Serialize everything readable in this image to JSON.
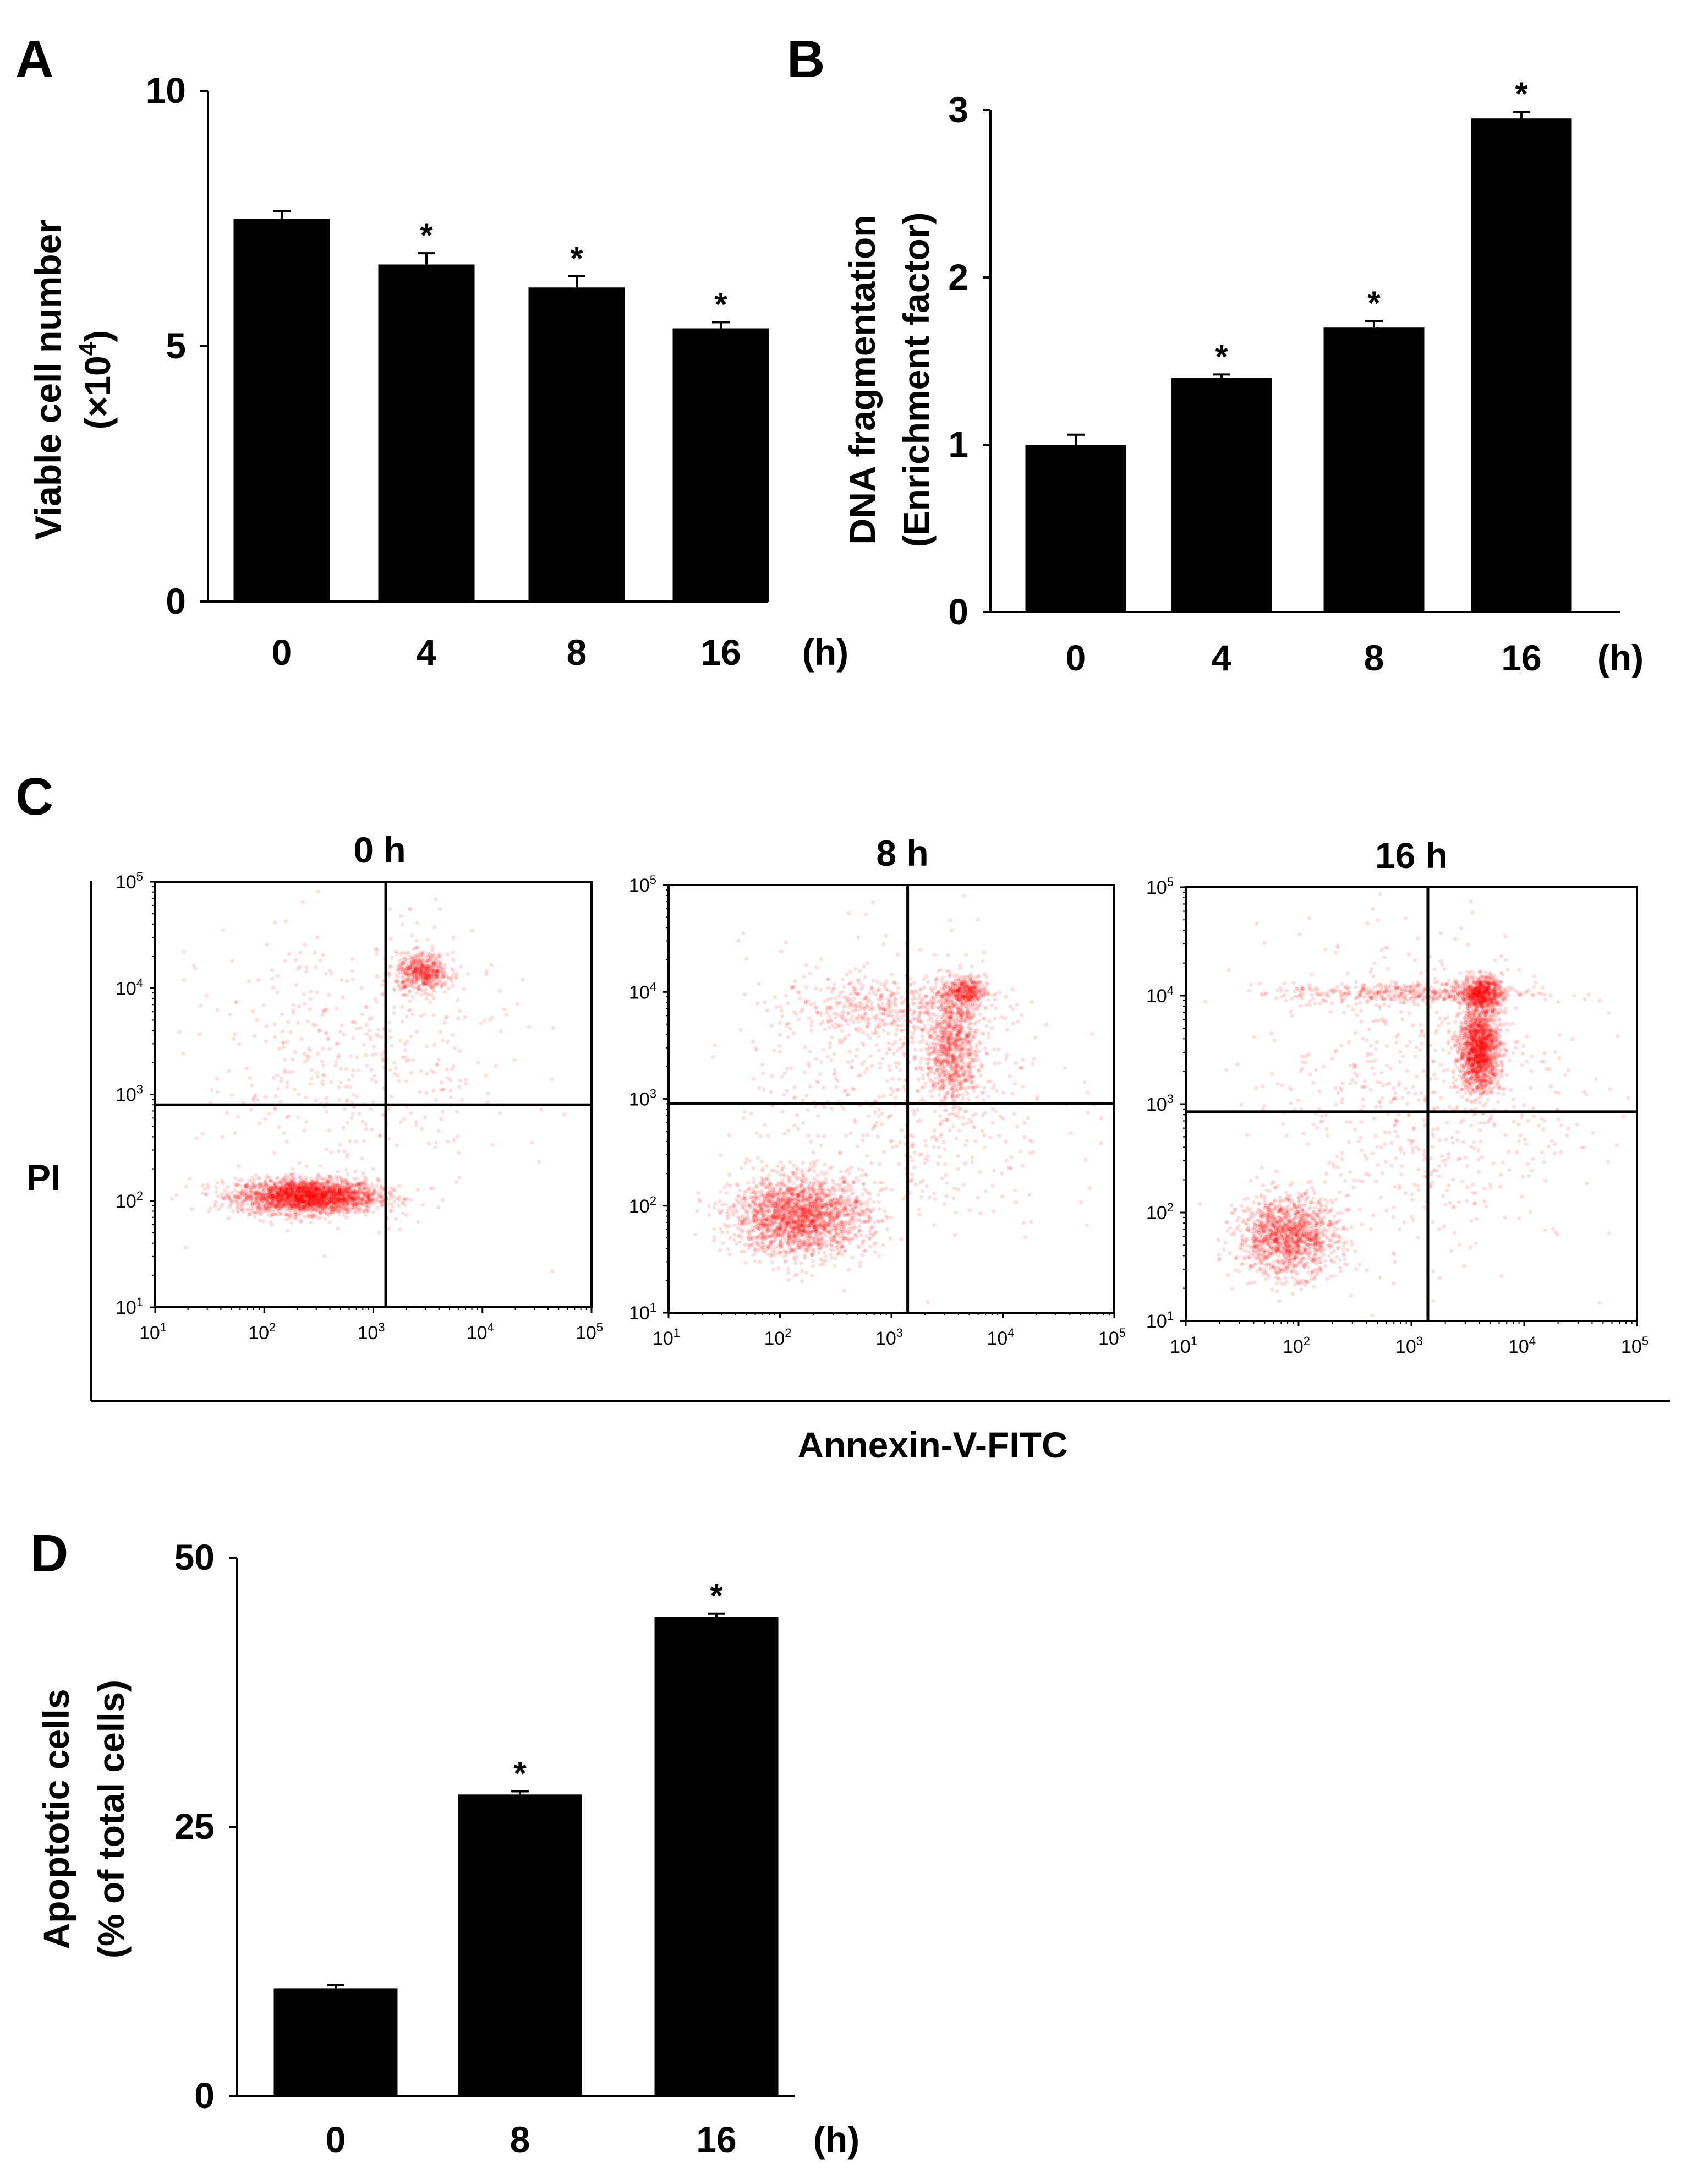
{
  "panels": {
    "A": {
      "letter": "A"
    },
    "B": {
      "letter": "B"
    },
    "C": {
      "letter": "C",
      "y_label": "PI",
      "x_label": "Annexin-V-FITC",
      "log_base": "10",
      "log_exponents": [
        "1",
        "2",
        "3",
        "4",
        "5"
      ]
    },
    "D": {
      "letter": "D"
    }
  },
  "chart_data": [
    {
      "panel": "A",
      "type": "bar",
      "categories": [
        "0",
        "4",
        "8",
        "16"
      ],
      "x_unit": "(h)",
      "values": [
        7.5,
        6.6,
        6.15,
        5.35
      ],
      "errors": [
        0.15,
        0.22,
        0.22,
        0.12
      ],
      "significant": [
        false,
        true,
        true,
        true
      ],
      "sig_marker": "*",
      "ylim": [
        0,
        10
      ],
      "yticks": [
        "0",
        "5",
        "10"
      ],
      "ylabel_line1": "Viable cell number",
      "ylabel_line2_pre": "(×10",
      "ylabel_line2_sup": "4",
      "ylabel_line2_post": ")"
    },
    {
      "panel": "B",
      "type": "bar",
      "categories": [
        "0",
        "4",
        "8",
        "16"
      ],
      "x_unit": "(h)",
      "values": [
        1.0,
        1.4,
        1.7,
        2.95
      ],
      "errors": [
        0.06,
        0.02,
        0.04,
        0.04
      ],
      "significant": [
        false,
        true,
        true,
        true
      ],
      "sig_marker": "*",
      "ylim": [
        0,
        3
      ],
      "yticks": [
        "0",
        "1",
        "2",
        "3"
      ],
      "ylabel_line1": "DNA fragmentation",
      "ylabel_line2": "(Enrichment factor)"
    },
    {
      "panel": "C",
      "type": "scatter",
      "xlabel": "Annexin-V-FITC",
      "ylabel": "PI",
      "axis_scale": "log",
      "xlim": [
        10,
        100000
      ],
      "ylim": [
        10,
        100000
      ],
      "point_color": "#ff0000",
      "plots": [
        {
          "title": "0 h",
          "gate_x": 1300,
          "gate_y": 800,
          "clusters": [
            {
              "x": 250,
              "y": 110,
              "sx": 0.32,
              "sy": 0.08,
              "n": 2600
            },
            {
              "x": 2800,
              "y": 14000,
              "sx": 0.12,
              "sy": 0.09,
              "n": 550
            },
            {
              "x": 700,
              "y": 2000,
              "sx": 0.7,
              "sy": 0.65,
              "n": 500
            }
          ]
        },
        {
          "title": "8 h",
          "gate_x": 1400,
          "gate_y": 900,
          "clusters": [
            {
              "x": 150,
              "y": 80,
              "sx": 0.3,
              "sy": 0.18,
              "n": 2100
            },
            {
              "x": 3500,
              "y": 3000,
              "sx": 0.12,
              "sy": 0.28,
              "n": 900
            },
            {
              "x": 4500,
              "y": 10000,
              "sx": 0.1,
              "sy": 0.07,
              "n": 400
            },
            {
              "x": 800,
              "y": 7000,
              "sx": 0.45,
              "sy": 0.15,
              "n": 450
            },
            {
              "x": 1200,
              "y": 1000,
              "sx": 0.7,
              "sy": 0.7,
              "n": 600
            }
          ]
        },
        {
          "title": "16 h",
          "gate_x": 1400,
          "gate_y": 850,
          "clusters": [
            {
              "x": 80,
              "y": 60,
              "sx": 0.22,
              "sy": 0.18,
              "n": 1400
            },
            {
              "x": 4000,
              "y": 3200,
              "sx": 0.09,
              "sy": 0.2,
              "n": 1600
            },
            {
              "x": 4200,
              "y": 10500,
              "sx": 0.09,
              "sy": 0.08,
              "n": 700
            },
            {
              "x": 1000,
              "y": 10500,
              "sx": 0.55,
              "sy": 0.05,
              "n": 450
            },
            {
              "x": 1200,
              "y": 1200,
              "sx": 0.7,
              "sy": 0.75,
              "n": 700
            }
          ]
        }
      ]
    },
    {
      "panel": "D",
      "type": "bar",
      "categories": [
        "0",
        "8",
        "16"
      ],
      "x_unit": "(h)",
      "values": [
        10,
        28,
        44.5
      ],
      "errors": [
        0.3,
        0.3,
        0.3
      ],
      "significant": [
        false,
        true,
        true
      ],
      "sig_marker": "*",
      "ylim": [
        0,
        50
      ],
      "yticks": [
        "0",
        "25",
        "50"
      ],
      "ylabel_line1": "Apoptotic cells",
      "ylabel_line2": "(% of total cells)"
    }
  ]
}
